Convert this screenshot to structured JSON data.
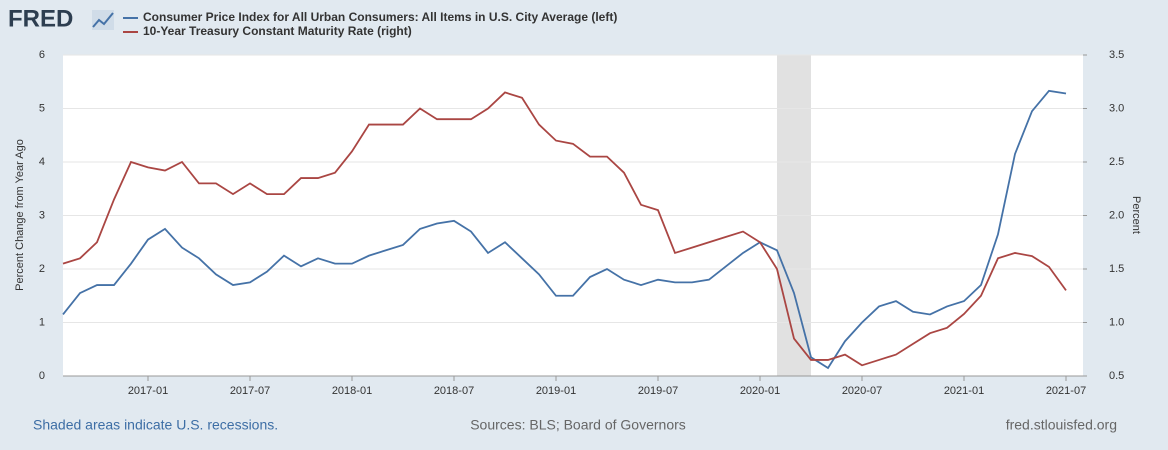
{
  "chart_data": {
    "type": "line",
    "logo": "FRED",
    "y_label": "Percent Change from Year Ago",
    "y2_label": "Percent",
    "footer_left": "Shaded areas indicate U.S. recessions.",
    "footer_center": "Sources: BLS; Board of Governors",
    "footer_right": "fred.stlouisfed.org",
    "x": [
      "2016-08",
      "2016-09",
      "2016-10",
      "2016-11",
      "2016-12",
      "2017-01",
      "2017-02",
      "2017-03",
      "2017-04",
      "2017-05",
      "2017-06",
      "2017-07",
      "2017-08",
      "2017-09",
      "2017-10",
      "2017-11",
      "2017-12",
      "2018-01",
      "2018-02",
      "2018-03",
      "2018-04",
      "2018-05",
      "2018-06",
      "2018-07",
      "2018-08",
      "2018-09",
      "2018-10",
      "2018-11",
      "2018-12",
      "2019-01",
      "2019-02",
      "2019-03",
      "2019-04",
      "2019-05",
      "2019-06",
      "2019-07",
      "2019-08",
      "2019-09",
      "2019-10",
      "2019-11",
      "2019-12",
      "2020-01",
      "2020-02",
      "2020-03",
      "2020-04",
      "2020-05",
      "2020-06",
      "2020-07",
      "2020-08",
      "2020-09",
      "2020-10",
      "2020-11",
      "2020-12",
      "2021-01",
      "2021-02",
      "2021-03",
      "2021-04",
      "2021-05",
      "2021-06",
      "2021-07"
    ],
    "series": [
      {
        "name": "Consumer Price Index for All Urban Consumers: All Items in U.S. City Average (left)",
        "color": "#4572a7",
        "axis": "y",
        "values": [
          1.15,
          1.55,
          1.7,
          1.7,
          2.1,
          2.55,
          2.75,
          2.4,
          2.2,
          1.9,
          1.7,
          1.75,
          1.95,
          2.25,
          2.05,
          2.2,
          2.1,
          2.1,
          2.25,
          2.35,
          2.45,
          2.75,
          2.85,
          2.9,
          2.7,
          2.3,
          2.5,
          2.2,
          1.9,
          1.5,
          1.5,
          1.85,
          2.0,
          1.8,
          1.7,
          1.8,
          1.75,
          1.75,
          1.8,
          2.05,
          2.3,
          2.5,
          2.35,
          1.55,
          0.35,
          0.15,
          0.65,
          1.0,
          1.3,
          1.4,
          1.2,
          1.15,
          1.3,
          1.4,
          1.7,
          2.65,
          4.15,
          4.95,
          5.33,
          5.28
        ]
      },
      {
        "name": "10-Year Treasury Constant Maturity Rate (right)",
        "color": "#aa4643",
        "axis": "y2",
        "values": [
          1.55,
          1.6,
          1.75,
          2.15,
          2.5,
          2.45,
          2.42,
          2.5,
          2.3,
          2.3,
          2.2,
          2.3,
          2.2,
          2.2,
          2.35,
          2.35,
          2.4,
          2.6,
          2.85,
          2.85,
          2.85,
          3.0,
          2.9,
          2.9,
          2.9,
          3.0,
          3.15,
          3.1,
          2.85,
          2.7,
          2.67,
          2.55,
          2.55,
          2.4,
          2.1,
          2.05,
          1.65,
          1.7,
          1.75,
          1.8,
          1.85,
          1.75,
          1.5,
          0.85,
          0.65,
          0.65,
          0.7,
          0.6,
          0.65,
          0.7,
          0.8,
          0.9,
          0.95,
          1.08,
          1.25,
          1.6,
          1.65,
          1.62,
          1.52,
          1.3
        ]
      }
    ],
    "recessions": [
      {
        "start": "2020-02",
        "end": "2020-04"
      }
    ],
    "xlim": [
      "2016-08",
      "2021-08"
    ],
    "xticks": [
      "2017-01",
      "2017-07",
      "2018-01",
      "2018-07",
      "2019-01",
      "2019-07",
      "2020-01",
      "2020-07",
      "2021-01",
      "2021-07"
    ],
    "ylim": [
      0,
      6
    ],
    "yticks": [
      0,
      1,
      2,
      3,
      4,
      5,
      6
    ],
    "y2lim": [
      0.5,
      3.5
    ],
    "y2ticks": [
      0.5,
      {
        "value": 1,
        "label": "1.0"
      },
      1.5,
      {
        "value": 2,
        "label": "2.0"
      },
      2.5,
      {
        "value": 3,
        "label": "3.0"
      },
      3.5
    ],
    "grid": true
  }
}
